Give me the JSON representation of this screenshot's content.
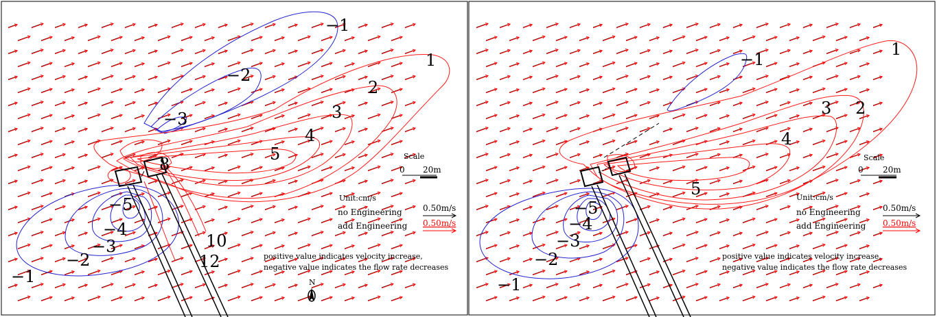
{
  "panels": [
    {
      "id": "left",
      "contour_labels": {
        "positive": [
          "1",
          "2",
          "3",
          "4",
          "5",
          "8",
          "10",
          "12"
        ],
        "negative": [
          "−1",
          "−2",
          "−3",
          "−1",
          "−2",
          "−3",
          "−4",
          "−5"
        ]
      },
      "scale": {
        "title": "Scale",
        "zero": "0",
        "length": "20m"
      },
      "unit": "Unit:cm/s",
      "legend": [
        {
          "label": "no Engineering",
          "value": "0.50m/s",
          "color": "#000000"
        },
        {
          "label": "add Engineering",
          "value": "0.50m/s",
          "color": "#ff0000"
        }
      ],
      "note_line1": "positive value indicates velocity increase,",
      "note_line2": "negative  value indicates the flow rate decreases",
      "north": "N"
    },
    {
      "id": "right",
      "contour_labels": {
        "positive": [
          "1",
          "2",
          "3",
          "4",
          "5"
        ],
        "negative": [
          "−1",
          "−1",
          "−2",
          "−3",
          "−4",
          "−5"
        ]
      },
      "scale": {
        "title": "Scale",
        "zero": "0",
        "length": "20m"
      },
      "unit": "Unit:cm/s",
      "legend": [
        {
          "label": "no Engineering",
          "value": "0.50m/s",
          "color": "#000000"
        },
        {
          "label": "add Engineering",
          "value": "0.50m/s",
          "color": "#ff0000"
        }
      ],
      "note_line1": "positive value indicates velocity increase,",
      "note_line2": "negative  value indicates the flow rate decreases"
    }
  ],
  "colors": {
    "positive_contour": "#ff1a1a",
    "negative_contour": "#2222d0",
    "vector_added": "#ff0000",
    "vector_original": "#000000"
  }
}
